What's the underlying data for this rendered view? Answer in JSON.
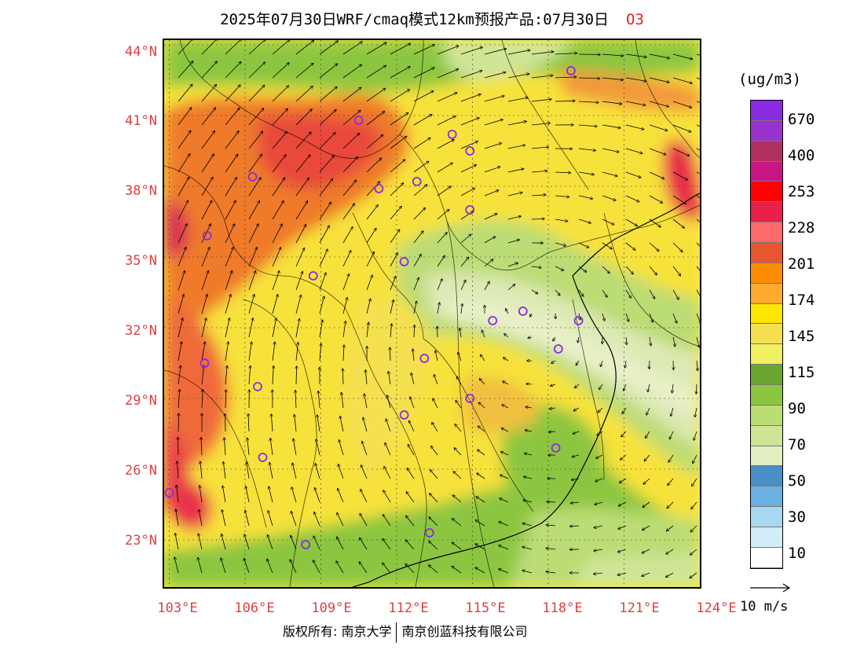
{
  "title": {
    "main": "2025年07月30日WRF/cmaq模式12km预报产品:07月30日",
    "pollutant": "O3"
  },
  "axes": {
    "lat_labels": [
      "44°N",
      "41°N",
      "38°N",
      "35°N",
      "32°N",
      "29°N",
      "26°N",
      "23°N"
    ],
    "lon_labels": [
      "103°E",
      "106°E",
      "109°E",
      "112°E",
      "115°E",
      "118°E",
      "121°E",
      "124°E"
    ]
  },
  "legend": {
    "unit": "(ug/m3)",
    "colors": [
      "#8a2be2",
      "#9932cc",
      "#b03060",
      "#c71585",
      "#ff0000",
      "#e8204a",
      "#ff6a6a",
      "#e8562e",
      "#ff8c00",
      "#ffab30",
      "#ffe600",
      "#f5e050",
      "#f0f060",
      "#6aa630",
      "#8cc640",
      "#bcdc74",
      "#cfe596",
      "#e3eec0",
      "#4b8fc8",
      "#6ab0e0",
      "#a8d8f0",
      "#d2ecf8",
      "#ffffff"
    ],
    "labels": [
      "670",
      "400",
      "253",
      "228",
      "201",
      "174",
      "145",
      "115",
      "90",
      "70",
      "50",
      "30",
      "10"
    ]
  },
  "wind": {
    "reference_label": "10 m/s"
  },
  "footer": {
    "copyright_left": "版权所有: 南京大学",
    "copyright_right": "南京创蓝科技有限公司"
  },
  "stations": [
    {
      "lon": 118.9,
      "lat": 42.9
    },
    {
      "lon": 110.5,
      "lat": 40.8
    },
    {
      "lon": 114.2,
      "lat": 40.2
    },
    {
      "lon": 114.9,
      "lat": 39.5
    },
    {
      "lon": 106.3,
      "lat": 38.4
    },
    {
      "lon": 111.3,
      "lat": 37.9
    },
    {
      "lon": 112.8,
      "lat": 38.2
    },
    {
      "lon": 114.9,
      "lat": 37.0
    },
    {
      "lon": 104.5,
      "lat": 35.9
    },
    {
      "lon": 112.3,
      "lat": 34.8
    },
    {
      "lon": 108.7,
      "lat": 34.2
    },
    {
      "lon": 117.0,
      "lat": 32.7
    },
    {
      "lon": 115.8,
      "lat": 32.3
    },
    {
      "lon": 119.2,
      "lat": 32.3
    },
    {
      "lon": 118.4,
      "lat": 31.1
    },
    {
      "lon": 104.4,
      "lat": 30.5
    },
    {
      "lon": 113.1,
      "lat": 30.7
    },
    {
      "lon": 106.5,
      "lat": 29.5
    },
    {
      "lon": 114.9,
      "lat": 29.0
    },
    {
      "lon": 112.3,
      "lat": 28.3
    },
    {
      "lon": 106.7,
      "lat": 26.5
    },
    {
      "lon": 118.3,
      "lat": 26.9
    },
    {
      "lon": 103.0,
      "lat": 25.0
    },
    {
      "lon": 108.4,
      "lat": 22.8
    },
    {
      "lon": 113.3,
      "lat": 23.3
    }
  ]
}
